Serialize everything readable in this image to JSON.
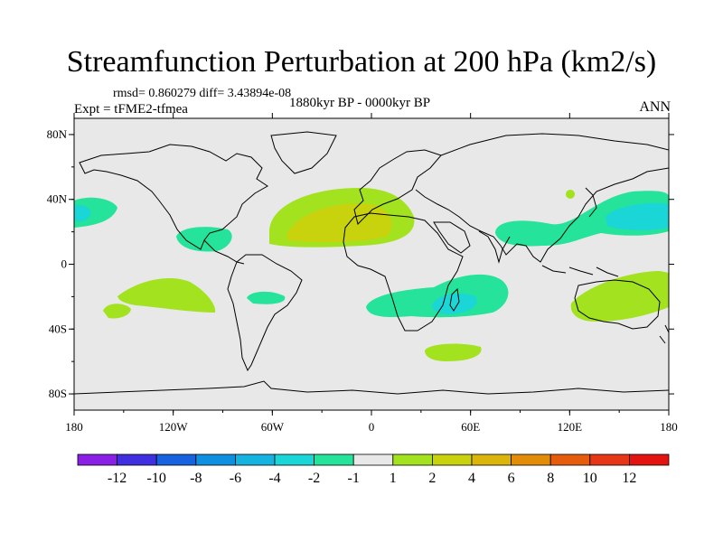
{
  "figure": {
    "title": "Streamfunction Perturbation at 200 hPa (km2/s)",
    "stats": "rmsd= 0.860279 diff= 3.43894e-08",
    "experiment": "Expt = tFME2-tfmea",
    "period": "1880kyr BP - 0000kyr BP",
    "season": "ANN"
  },
  "axes": {
    "lat_labels": [
      "80N",
      "40N",
      "0",
      "40S",
      "80S"
    ],
    "lat_values": [
      80,
      40,
      0,
      -40,
      -80
    ],
    "lon_labels": [
      "180",
      "120W",
      "60W",
      "0",
      "60E",
      "120E",
      "180"
    ],
    "lon_values": [
      -180,
      -120,
      -60,
      0,
      60,
      120,
      180
    ]
  },
  "colorbar": {
    "labels": [
      "-12",
      "-10",
      "-8",
      "-6",
      "-4",
      "-2",
      "-1",
      "1",
      "2",
      "4",
      "6",
      "8",
      "10",
      "12"
    ],
    "colors": [
      "#8a20e6",
      "#3f2fe0",
      "#1762df",
      "#0e8fe0",
      "#14b3e0",
      "#1ad6d6",
      "#25e39a",
      "#e8e8e8",
      "#a2e21e",
      "#c8d20d",
      "#dcb50b",
      "#e38c0a",
      "#e55d0c",
      "#e63517",
      "#e3140f"
    ]
  },
  "colors": {
    "background_land_ocean": "#e8e8e8",
    "coast": "#000000"
  }
}
